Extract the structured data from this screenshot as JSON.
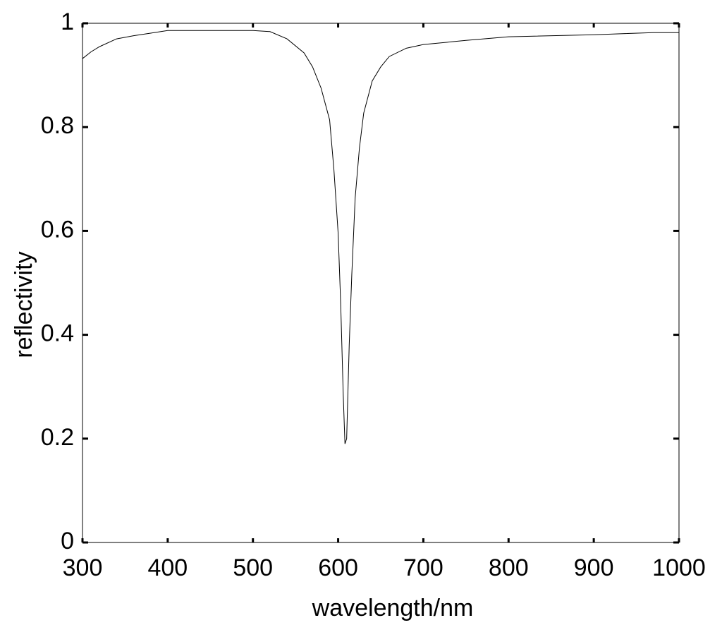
{
  "chart_data": {
    "type": "line",
    "x_label": "wavelength/nm",
    "y_label": "reflectivity",
    "x": [
      300,
      310,
      320,
      340,
      360,
      380,
      400,
      450,
      500,
      520,
      540,
      560,
      570,
      580,
      590,
      595,
      600,
      603,
      606,
      608,
      610,
      613,
      616,
      620,
      625,
      630,
      640,
      650,
      660,
      680,
      700,
      750,
      800,
      900,
      970,
      1000
    ],
    "values": [
      0.932,
      0.945,
      0.955,
      0.97,
      0.976,
      0.981,
      0.986,
      0.986,
      0.986,
      0.984,
      0.97,
      0.943,
      0.916,
      0.875,
      0.814,
      0.719,
      0.596,
      0.46,
      0.284,
      0.19,
      0.2,
      0.38,
      0.515,
      0.664,
      0.76,
      0.827,
      0.889,
      0.916,
      0.936,
      0.952,
      0.959,
      0.967,
      0.974,
      0.978,
      0.982,
      0.982
    ],
    "color": "#000000",
    "xlim": [
      300,
      1000
    ],
    "xticks": [
      300,
      400,
      500,
      600,
      700,
      800,
      900,
      1000
    ],
    "ylim": [
      0,
      1
    ],
    "yticks": [
      0,
      0.2,
      0.4,
      0.6,
      0.8,
      1
    ],
    "grid": false
  }
}
